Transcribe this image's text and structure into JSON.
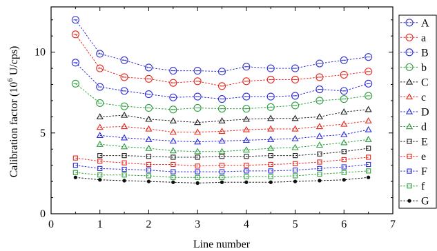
{
  "chart_data": {
    "type": "line",
    "title": "",
    "xlabel": "Line number",
    "ylabel": "Calibration factor (10^6 U/cps)",
    "ylabel_parts": {
      "before": "Calibration factor (10",
      "sup": "6",
      "after": " U/cps)"
    },
    "xlim": [
      0,
      7
    ],
    "ylim": [
      0,
      12.8
    ],
    "xticks": [
      "0",
      "1",
      "2",
      "3",
      "4",
      "5",
      "6",
      "7"
    ],
    "yticks": [
      "0",
      "5",
      "10"
    ],
    "grid": false,
    "legend_position": "right",
    "x": [
      0.5,
      1,
      1.5,
      2,
      2.5,
      3,
      3.5,
      4,
      4.5,
      5,
      5.5,
      6,
      6.5
    ],
    "series": [
      {
        "name": "A",
        "marker": "circle",
        "color": "#3333cc",
        "values": [
          12.0,
          9.9,
          9.5,
          9.05,
          8.85,
          8.85,
          8.8,
          9.1,
          9.0,
          9.0,
          9.3,
          9.5,
          9.7
        ]
      },
      {
        "name": "a",
        "marker": "circle",
        "color": "#e8261c",
        "values": [
          11.1,
          9.0,
          8.45,
          8.35,
          8.1,
          8.2,
          7.9,
          8.2,
          8.3,
          8.3,
          8.45,
          8.6,
          8.8
        ]
      },
      {
        "name": "B",
        "marker": "circle",
        "color": "#2b2bd9",
        "values": [
          9.35,
          7.85,
          7.6,
          7.4,
          7.2,
          7.25,
          7.1,
          7.25,
          7.25,
          7.3,
          7.7,
          7.6,
          8.05
        ]
      },
      {
        "name": "b",
        "marker": "circle",
        "color": "#2e9e3e",
        "values": [
          8.05,
          6.85,
          6.65,
          6.55,
          6.45,
          6.55,
          6.5,
          6.5,
          6.6,
          6.7,
          7.0,
          7.1,
          7.3
        ]
      },
      {
        "name": "C",
        "marker": "triangle",
        "color": "#222222",
        "values": [
          null,
          6.0,
          6.1,
          5.85,
          5.75,
          5.65,
          5.75,
          5.85,
          5.9,
          5.9,
          6.0,
          6.3,
          6.45
        ]
      },
      {
        "name": "c",
        "marker": "triangle",
        "color": "#e8261c",
        "values": [
          null,
          5.35,
          5.4,
          5.25,
          5.05,
          5.05,
          5.1,
          5.2,
          5.25,
          5.25,
          5.4,
          5.55,
          5.75
        ]
      },
      {
        "name": "D",
        "marker": "triangle",
        "color": "#2b2bd9",
        "values": [
          null,
          4.85,
          4.7,
          4.6,
          4.5,
          4.45,
          4.5,
          4.55,
          4.6,
          4.65,
          4.8,
          4.9,
          5.2
        ]
      },
      {
        "name": "d",
        "marker": "triangle",
        "color": "#2e9e3e",
        "values": [
          null,
          4.3,
          4.15,
          4.05,
          3.9,
          3.85,
          3.85,
          3.95,
          4.05,
          4.1,
          4.25,
          4.4,
          4.6
        ]
      },
      {
        "name": "E",
        "marker": "square",
        "color": "#222222",
        "values": [
          null,
          3.6,
          3.6,
          3.55,
          3.5,
          3.5,
          3.55,
          3.55,
          3.6,
          3.6,
          3.7,
          3.85,
          4.05
        ]
      },
      {
        "name": "e",
        "marker": "square",
        "color": "#e8261c",
        "values": [
          3.45,
          3.25,
          3.15,
          3.05,
          3.05,
          2.95,
          3.0,
          3.0,
          3.05,
          3.1,
          3.2,
          3.35,
          3.5
        ]
      },
      {
        "name": "F",
        "marker": "square",
        "color": "#2b2bd9",
        "values": [
          3.0,
          2.8,
          2.75,
          2.7,
          2.6,
          2.6,
          2.6,
          2.65,
          2.65,
          2.7,
          2.8,
          2.9,
          3.05
        ]
      },
      {
        "name": "f",
        "marker": "square",
        "color": "#2e9e3e",
        "values": [
          2.55,
          2.4,
          2.4,
          2.35,
          2.25,
          2.25,
          2.25,
          2.3,
          2.3,
          2.35,
          2.45,
          2.55,
          2.65
        ]
      },
      {
        "name": "G",
        "marker": "dot",
        "color": "#111111",
        "values": [
          2.25,
          2.1,
          2.05,
          2.0,
          1.95,
          1.9,
          1.95,
          1.95,
          1.95,
          2.0,
          2.05,
          2.1,
          2.25
        ]
      }
    ]
  }
}
